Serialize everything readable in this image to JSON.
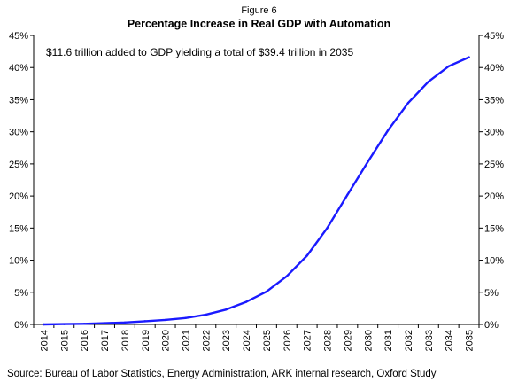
{
  "figure_label": "Figure 6",
  "source": "Source: Bureau of Labor Statistics, Energy Administration, ARK internal research, Oxford Study",
  "chart_data": {
    "type": "line",
    "title": "Percentage Increase in Real GDP with Automation",
    "annotation": "$11.6 trillion added to GDP yielding a total of $39.4 trillion in 2035",
    "xlabel": "",
    "ylabel": "",
    "x": [
      "2014",
      "2015",
      "2016",
      "2017",
      "2018",
      "2019",
      "2020",
      "2021",
      "2022",
      "2023",
      "2024",
      "2025",
      "2026",
      "2027",
      "2028",
      "2029",
      "2030",
      "2031",
      "2032",
      "2033",
      "2034",
      "2035"
    ],
    "series": [
      {
        "values": [
          0.0,
          0.05,
          0.1,
          0.2,
          0.3,
          0.5,
          0.7,
          1.0,
          1.5,
          2.3,
          3.5,
          5.1,
          7.5,
          10.7,
          15.0,
          20.2,
          25.3,
          30.2,
          34.5,
          37.8,
          40.2,
          41.6
        ],
        "color": "#1a1aff"
      }
    ],
    "ylim": [
      0,
      45
    ],
    "y_ticks": [
      {
        "value": 0,
        "label": "0%"
      },
      {
        "value": 5,
        "label": "5%"
      },
      {
        "value": 10,
        "label": "10%"
      },
      {
        "value": 15,
        "label": "15%"
      },
      {
        "value": 20,
        "label": "20%"
      },
      {
        "value": 25,
        "label": "25%"
      },
      {
        "value": 30,
        "label": "30%"
      },
      {
        "value": 35,
        "label": "35%"
      },
      {
        "value": 40,
        "label": "40%"
      },
      {
        "value": 45,
        "label": "45%"
      }
    ],
    "grid": false,
    "y_axis_both_sides": true
  }
}
